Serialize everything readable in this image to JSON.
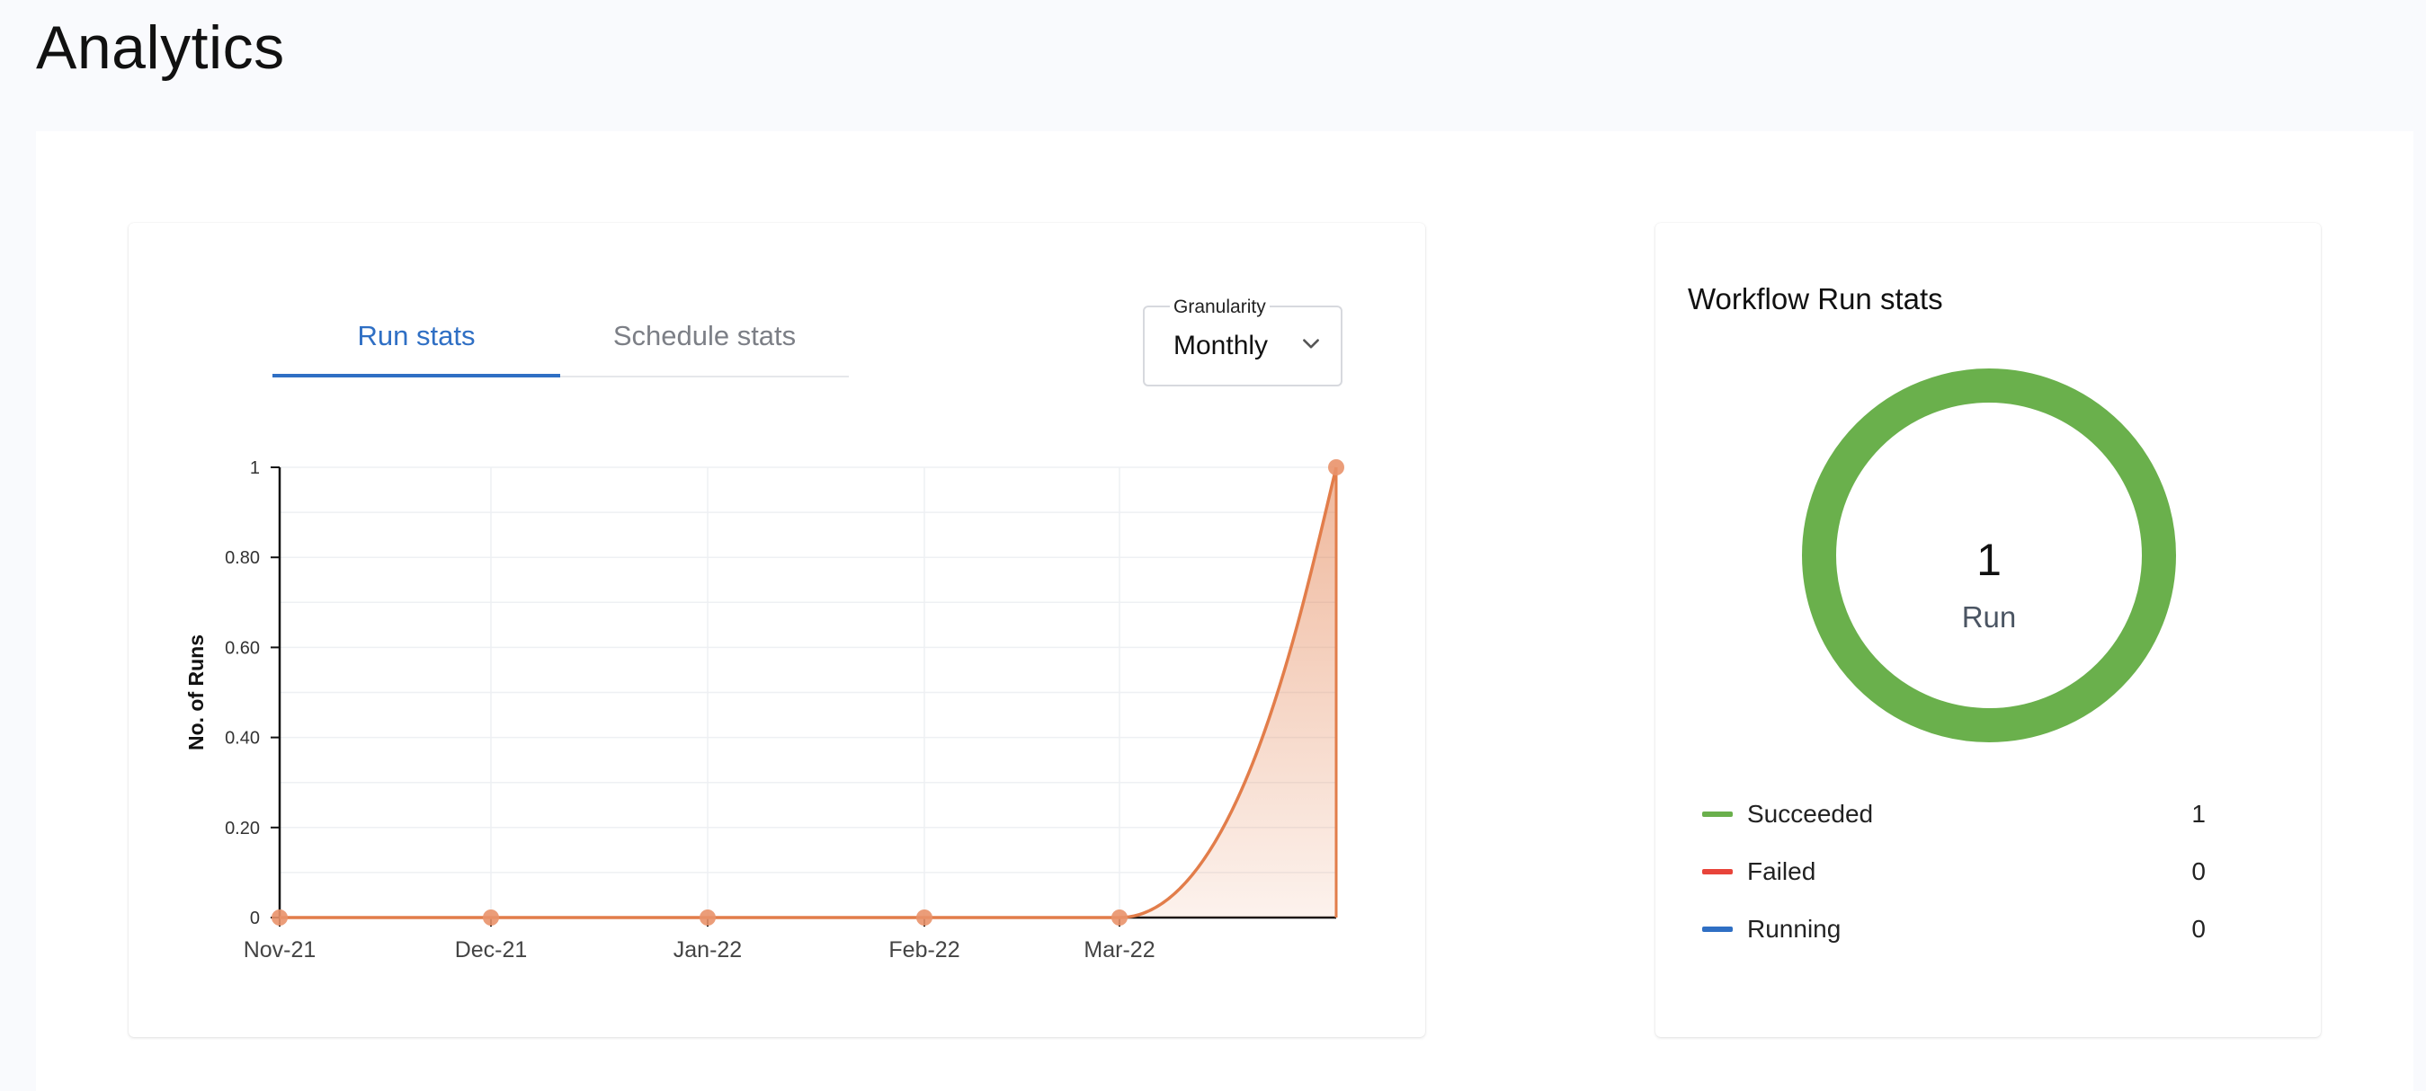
{
  "page": {
    "title": "Analytics"
  },
  "runs_card": {
    "tabs": [
      {
        "label": "Run stats",
        "active": true
      },
      {
        "label": "Schedule stats",
        "active": false
      }
    ],
    "granularity": {
      "legend": "Granularity",
      "value": "Monthly",
      "icon": "chevron-down-icon"
    }
  },
  "colors": {
    "accent": "#2f6fc4",
    "line": "#e27d4a",
    "succeeded": "#6ab04c",
    "failed": "#e8443a",
    "running": "#2f6fc4"
  },
  "chart_data": {
    "type": "area",
    "categories": [
      "Nov-21",
      "Dec-21",
      "Jan-22",
      "Feb-22",
      "Mar-22",
      ""
    ],
    "values": [
      0,
      0,
      0,
      0,
      0,
      1
    ],
    "ylabel": "No. of Runs",
    "ylim": [
      0,
      1
    ],
    "yticks": [
      "0",
      "0.20",
      "0.40",
      "0.60",
      "0.80",
      "1"
    ],
    "grid": true
  },
  "stats_card": {
    "title": "Workflow Run stats",
    "total": "1",
    "total_label": "Run",
    "legend": [
      {
        "label": "Succeeded",
        "value": "1",
        "color": "#6ab04c"
      },
      {
        "label": "Failed",
        "value": "0",
        "color": "#e8443a"
      },
      {
        "label": "Running",
        "value": "0",
        "color": "#2f6fc4"
      }
    ]
  }
}
